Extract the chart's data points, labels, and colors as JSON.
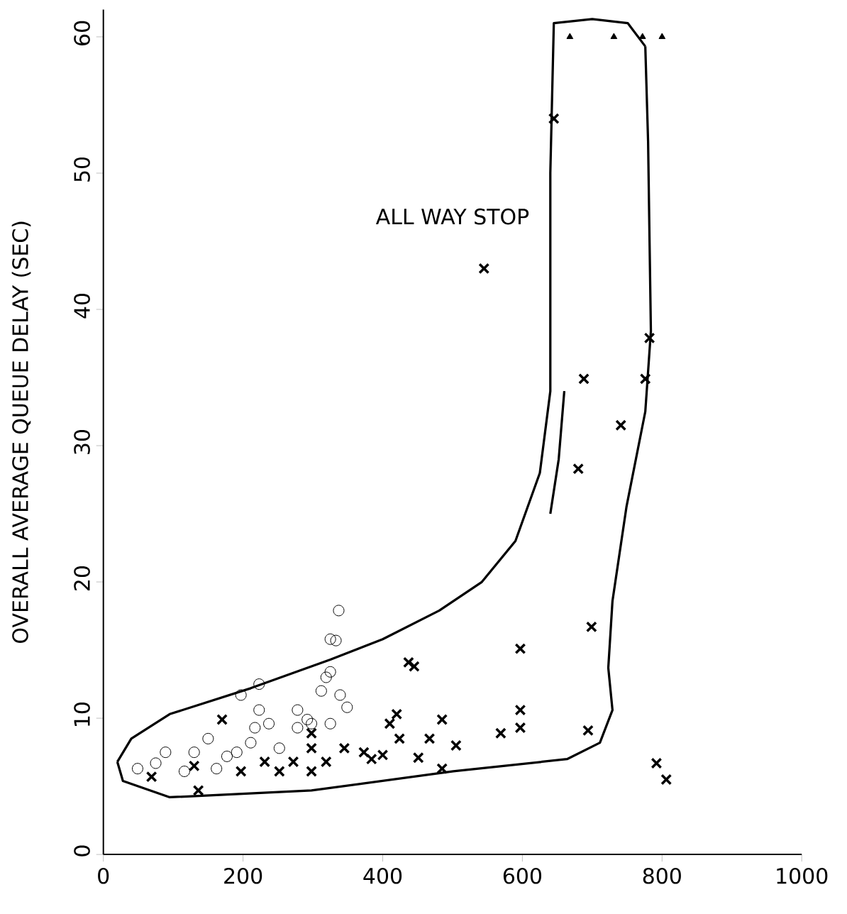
{
  "chart_data": {
    "type": "scatter",
    "ylabel": "OVERALL AVERAGE QUEUE DELAY (SEC)",
    "xlim": [
      0,
      1000
    ],
    "ylim": [
      0,
      62
    ],
    "xticks": [
      0,
      200,
      400,
      600,
      800,
      1000
    ],
    "yticks": [
      0,
      10,
      20,
      30,
      40,
      50,
      60
    ],
    "grid": false,
    "annotations": [
      "ALL WAY STOP"
    ],
    "series": [
      {
        "marker": "circle",
        "color": "#000000",
        "x": [
          49,
          89,
          75,
          130,
          150,
          191,
          197,
          223,
          223,
          237,
          211,
          278,
          292,
          325,
          319,
          312,
          298,
          116,
          162,
          177,
          252,
          217,
          278,
          337,
          333,
          325,
          339,
          349,
          325
        ],
        "values": [
          6.3,
          7.5,
          6.7,
          7.5,
          8.5,
          7.5,
          11.7,
          12.5,
          10.6,
          9.6,
          8.2,
          10.6,
          9.9,
          15.8,
          13.0,
          12.0,
          9.6,
          6.1,
          6.3,
          7.2,
          7.8,
          9.3,
          9.3,
          17.9,
          15.7,
          13.4,
          11.7,
          10.8,
          9.6
        ]
      },
      {
        "marker": "cross",
        "color": "#000000",
        "x": [
          170,
          298,
          298,
          136,
          231,
          272,
          130,
          69,
          197,
          252,
          298,
          345,
          319,
          373,
          384,
          400,
          410,
          420,
          424,
          451,
          467,
          485,
          485,
          505,
          437,
          445,
          569,
          597,
          597,
          597,
          694,
          699,
          680,
          741,
          688,
          776,
          782,
          792,
          806,
          545,
          645
        ],
        "values": [
          9.9,
          8.9,
          6.1,
          4.7,
          6.8,
          6.8,
          6.5,
          5.7,
          6.1,
          6.1,
          7.8,
          7.8,
          6.8,
          7.5,
          7.0,
          7.3,
          9.6,
          10.3,
          8.5,
          7.1,
          8.5,
          9.9,
          6.3,
          8.0,
          14.1,
          13.8,
          8.9,
          10.6,
          9.3,
          15.1,
          9.1,
          16.7,
          28.3,
          31.5,
          34.9,
          34.9,
          37.9,
          6.7,
          5.5,
          43,
          54
        ]
      },
      {
        "marker": "triangle",
        "color": "#000000",
        "x": [
          668,
          731,
          772,
          800
        ],
        "values": [
          60,
          60,
          60,
          60
        ]
      },
      {
        "type": "line",
        "marker": "none",
        "color": "#000000",
        "x": [
          20,
          40,
          95,
          211,
          325,
          400,
          481,
          542,
          590,
          625,
          640,
          640,
          645,
          700,
          751,
          776
        ],
        "values": [
          6.8,
          8.5,
          10.3,
          12.2,
          14.3,
          15.8,
          17.9,
          20,
          23,
          28,
          34,
          50,
          61,
          61.3,
          61,
          59.3
        ]
      },
      {
        "type": "line",
        "marker": "none",
        "color": "#000000",
        "x": [
          20,
          28,
          95,
          298,
          501,
          664,
          711,
          729,
          723,
          729,
          749,
          776,
          784,
          782,
          780,
          776
        ],
        "values": [
          6.8,
          5.4,
          4.2,
          4.7,
          6.1,
          7.0,
          8.2,
          10.6,
          13.7,
          18.6,
          25.5,
          32.5,
          38.4,
          45.3,
          52.3,
          59.3
        ]
      },
      {
        "type": "line",
        "marker": "none",
        "color": "#000000",
        "x": [
          660,
          652,
          640
        ],
        "values": [
          34,
          29,
          25
        ]
      }
    ]
  }
}
